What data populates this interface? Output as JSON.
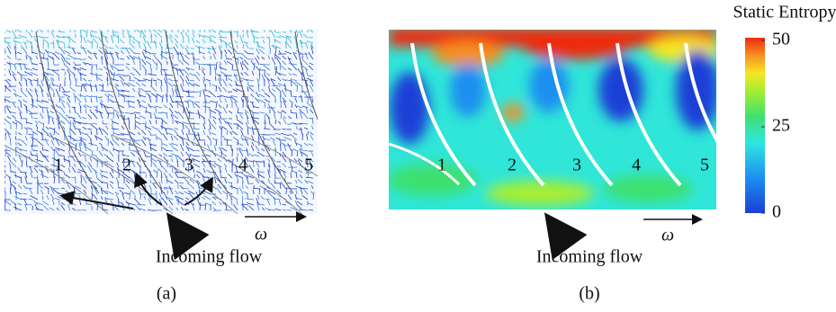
{
  "panels": [
    {
      "label": "(a)",
      "blades": [
        "1",
        "2",
        "3",
        "4",
        "5"
      ],
      "flow_label": "Incoming flow",
      "rotation_label": "ω"
    },
    {
      "label": "(b)",
      "blades": [
        "1",
        "2",
        "3",
        "4",
        "5"
      ],
      "flow_label": "Incoming flow",
      "rotation_label": "ω"
    }
  ],
  "colorbar": {
    "title": "Static Entropy",
    "lim": [
      0,
      50
    ],
    "ticks": [
      0,
      25,
      50
    ]
  }
}
